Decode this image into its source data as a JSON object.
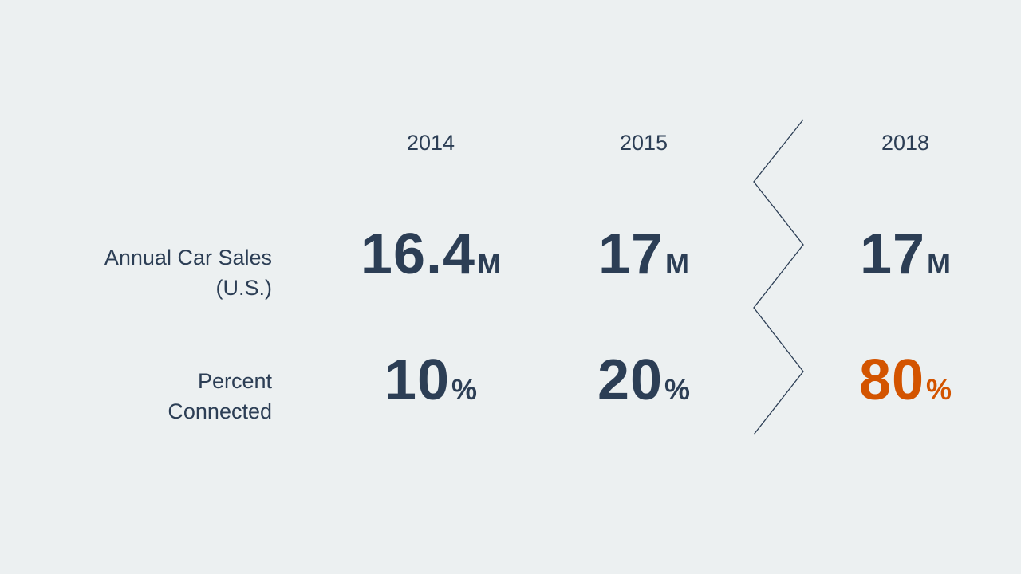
{
  "table": {
    "columns": [
      "2014",
      "2015",
      "2018"
    ],
    "rows": [
      {
        "label": [
          "Annual Car Sales",
          "(U.S.)"
        ],
        "cells": [
          {
            "value": 16.4,
            "unit": "M"
          },
          {
            "value": 17,
            "unit": "M"
          },
          {
            "value": 17,
            "unit": "M"
          }
        ]
      },
      {
        "label": [
          "Percent",
          "Connected"
        ],
        "cells": [
          {
            "value": 10,
            "unit": "%"
          },
          {
            "value": 20,
            "unit": "%"
          },
          {
            "value": 80,
            "unit": "%",
            "color": "#d35400"
          }
        ]
      }
    ]
  }
}
